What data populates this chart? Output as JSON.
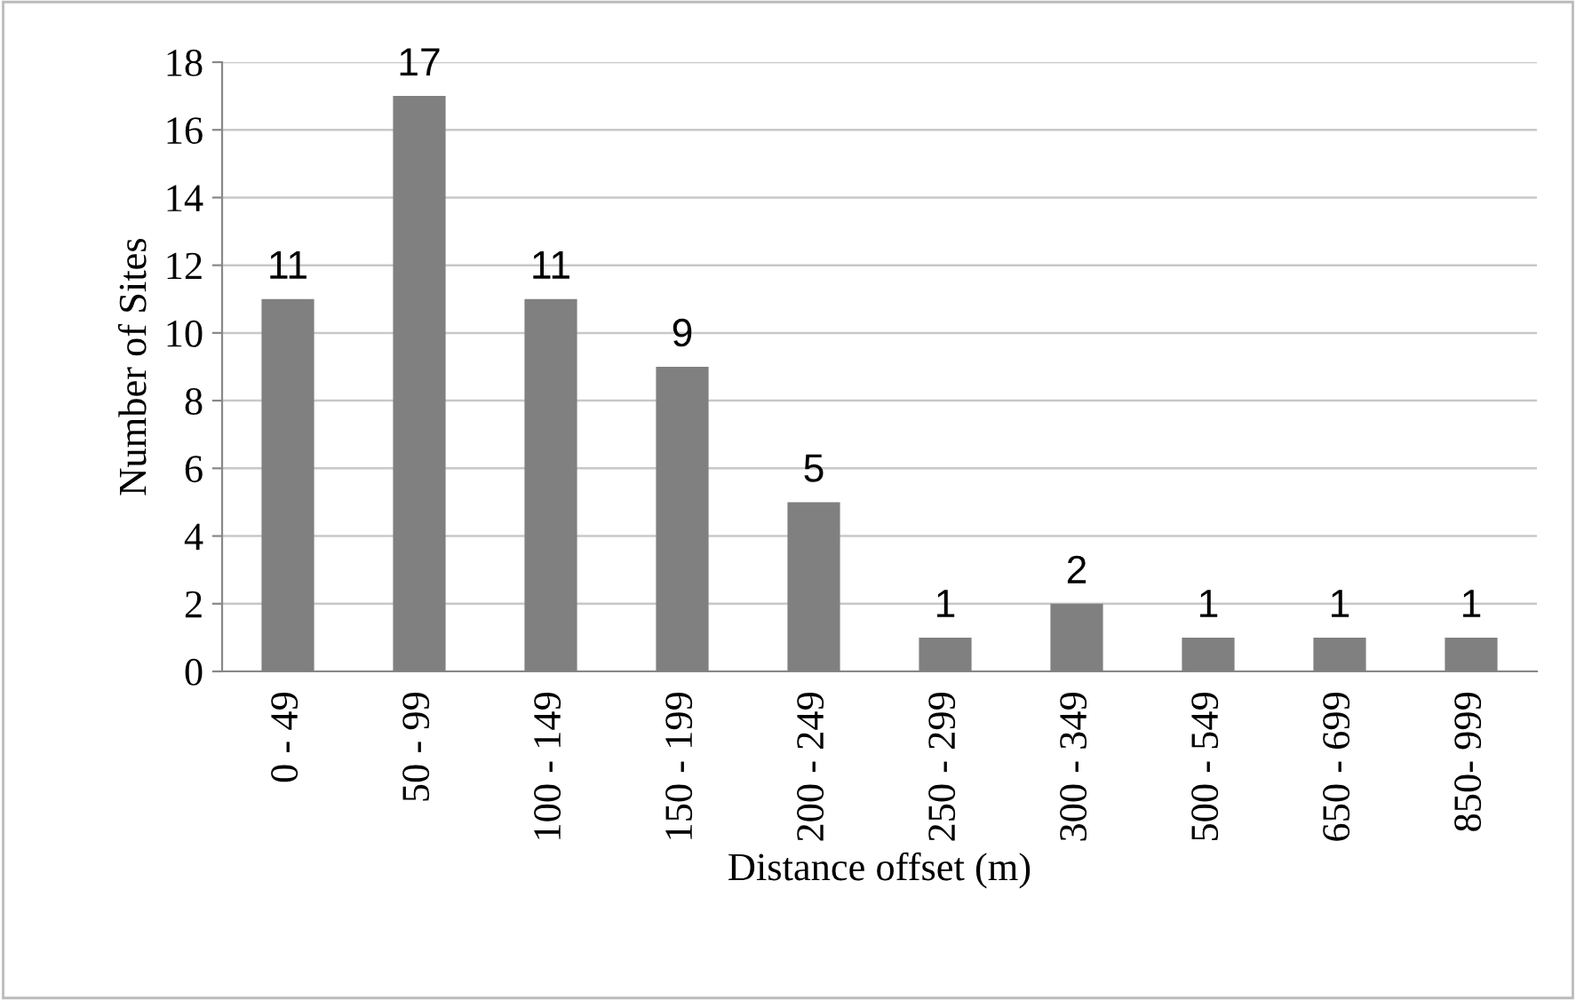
{
  "chart_data": {
    "type": "bar",
    "xlabel": "Distance offset (m)",
    "ylabel": "Number of Sites",
    "categories": [
      "0 - 49",
      "50 - 99",
      "100 - 149",
      "150 - 199",
      "200 - 249",
      "250 - 299",
      "300 - 349",
      "500 - 549",
      "650 - 699",
      "850- 999"
    ],
    "values": [
      11,
      17,
      11,
      9,
      5,
      1,
      2,
      1,
      1,
      1
    ],
    "color": "#808080",
    "ylim": [
      0,
      18
    ],
    "yticks": [
      0,
      2,
      4,
      6,
      8,
      10,
      12,
      14,
      16,
      18
    ],
    "grid": "y",
    "data_labels": true
  }
}
